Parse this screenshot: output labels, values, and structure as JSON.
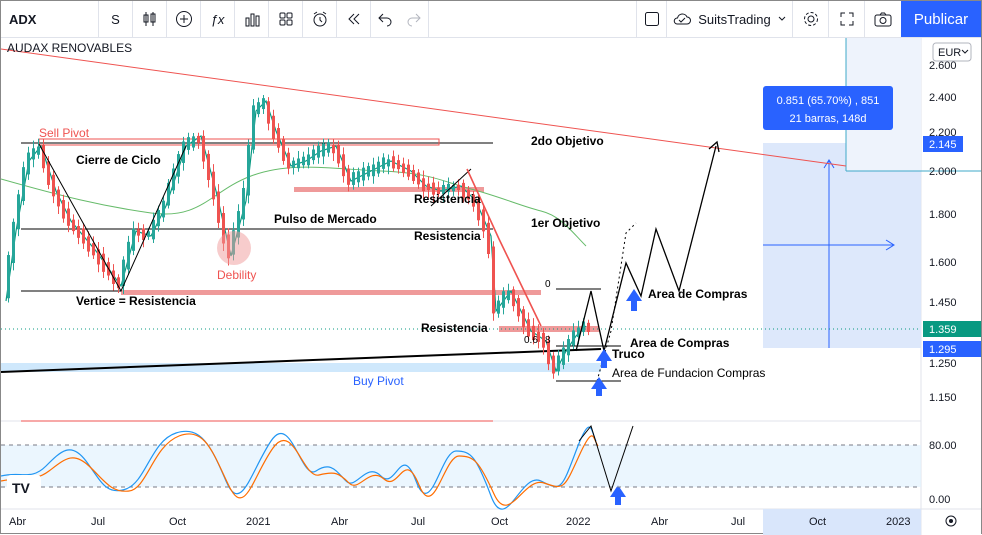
{
  "toolbar": {
    "symbol": "ADX",
    "interval": "S",
    "brand": "SuitsTrading",
    "publish_label": "Publicar",
    "icons": [
      "candles-icon",
      "plus-circle-icon",
      "fx-icon",
      "bars-icon",
      "grid-icon",
      "alert-clock-icon",
      "replay-icon",
      "undo-icon",
      "redo-icon",
      "square-icon",
      "cloud-icon",
      "gear-icon",
      "fullscreen-icon",
      "camera-icon"
    ]
  },
  "chart": {
    "title": "AUDAX RENOVABLES",
    "currency": "EUR",
    "logo": "TV",
    "price_axis": [
      "2.600",
      "2.400",
      "2.200",
      "2.000",
      "1.800",
      "1.600",
      "1.450",
      "1.250",
      "1.150",
      "80.00",
      "0.00"
    ],
    "price_tags": [
      {
        "text": "2.145",
        "color": "#2962ff"
      },
      {
        "text": "1.359",
        "color": "#089981"
      },
      {
        "text": "1.295",
        "color": "#2962ff"
      }
    ],
    "time_axis": [
      "Abr",
      "Jul",
      "Oct",
      "2021",
      "Abr",
      "Jul",
      "Oct",
      "2022",
      "Abr",
      "Jul",
      "Oct",
      "2023"
    ],
    "measure_line1": "0.851 (65.70%) , 851",
    "measure_line2": "21 barras, 148d",
    "annotations": {
      "sell_pivot": "Sell Pivot",
      "cierre_ciclo": "Cierre de Ciclo",
      "pulso": "Pulso de Mercado",
      "debility": "Debility",
      "vertice": "Vertice = Resistencia",
      "resistencia1": "Resistencia",
      "resistencia2": "Resistencia",
      "resistencia3": "Resistencia",
      "obj2": "2do Objetivo",
      "obj1": "1er Objetivo",
      "area1": "Area de Compras",
      "area2": "Area de Compras",
      "truco": "Truco",
      "fundacion": "Area de Fundacion Compras",
      "buy_pivot": "Buy Pivot",
      "fib0": "0",
      "fib_low": "0.6",
      "fib_low2": "8"
    }
  }
}
